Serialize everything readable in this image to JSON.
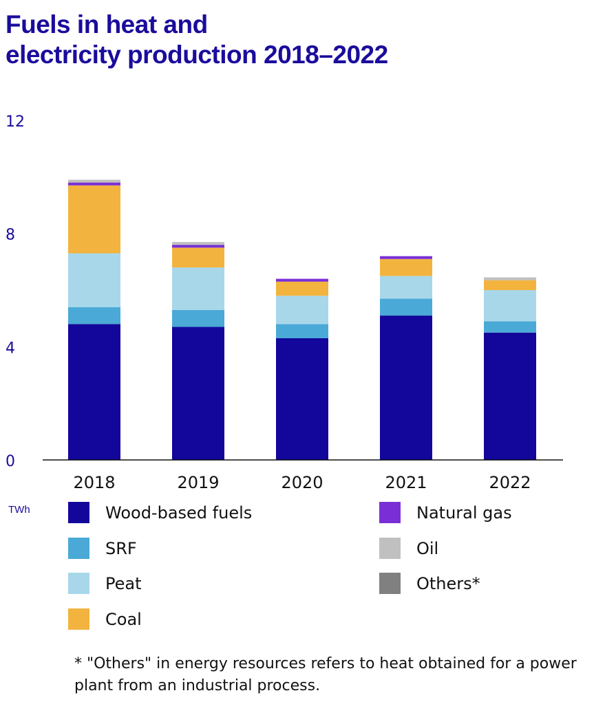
{
  "title_line1": "Fuels in heat and",
  "title_line2": "electricity production 2018–2022",
  "unit": "TWh",
  "footnote": "* \"Others\" in energy resources refers to heat obtained for a power plant from an industrial process.",
  "legend": [
    {
      "label": "Wood-based fuels",
      "color": "#13069a"
    },
    {
      "label": "SRF",
      "color": "#4aa9d6"
    },
    {
      "label": "Peat",
      "color": "#a8d7ea"
    },
    {
      "label": "Coal",
      "color": "#f2b43f"
    },
    {
      "label": "Natural gas",
      "color": "#7a2fd6"
    },
    {
      "label": "Oil",
      "color": "#c0c0c0"
    },
    {
      "label": "Others*",
      "color": "#808080"
    }
  ],
  "chart_data": {
    "type": "bar",
    "stacked": true,
    "title": "Fuels in heat and electricity production 2018–2022",
    "ylabel": "TWh",
    "ylim": [
      0,
      12
    ],
    "yticks": [
      0,
      4,
      8,
      12
    ],
    "categories": [
      "2018",
      "2019",
      "2020",
      "2021",
      "2022"
    ],
    "series": [
      {
        "name": "Wood-based fuels",
        "color": "#13069a",
        "values": [
          4.8,
          4.7,
          4.3,
          5.1,
          4.5
        ]
      },
      {
        "name": "SRF",
        "color": "#4aa9d6",
        "values": [
          0.6,
          0.6,
          0.5,
          0.6,
          0.4
        ]
      },
      {
        "name": "Peat",
        "color": "#a8d7ea",
        "values": [
          1.9,
          1.5,
          1.0,
          0.8,
          1.1
        ]
      },
      {
        "name": "Coal",
        "color": "#f2b43f",
        "values": [
          2.4,
          0.7,
          0.5,
          0.6,
          0.35
        ]
      },
      {
        "name": "Natural gas",
        "color": "#7a2fd6",
        "values": [
          0.1,
          0.1,
          0.1,
          0.1,
          0.0
        ]
      },
      {
        "name": "Oil",
        "color": "#c0c0c0",
        "values": [
          0.1,
          0.1,
          0.0,
          0.0,
          0.1
        ]
      },
      {
        "name": "Others*",
        "color": "#808080",
        "values": [
          0.0,
          0.0,
          0.0,
          0.0,
          0.0
        ]
      }
    ],
    "grid": false,
    "legend_position": "bottom"
  }
}
